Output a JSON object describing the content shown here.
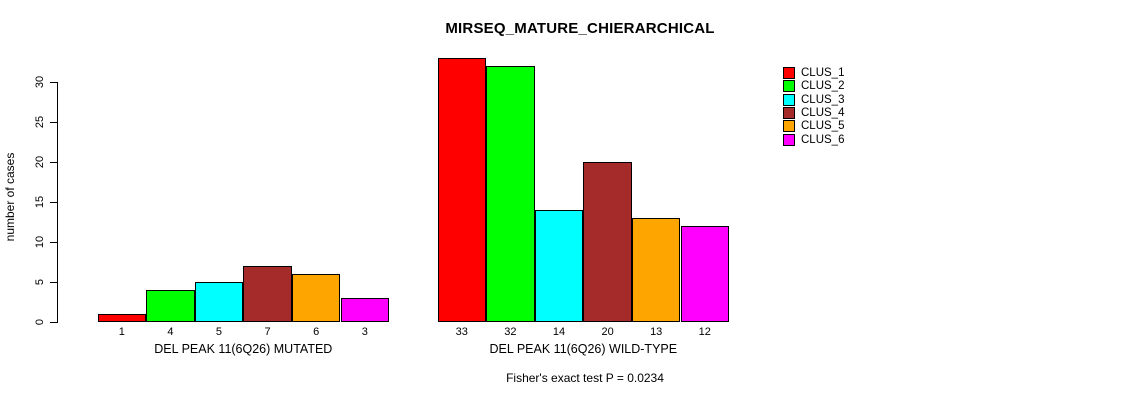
{
  "title": "MIRSEQ_MATURE_CHIERARCHICAL",
  "chart_data": {
    "type": "bar",
    "title": "MIRSEQ_MATURE_CHIERARCHICAL",
    "ylabel": "number of cases",
    "xlabel": "",
    "ylim": [
      0,
      33
    ],
    "yticks": [
      0,
      5,
      10,
      15,
      20,
      25,
      30
    ],
    "grid": false,
    "legend_position": "right-outside",
    "legend": [
      {
        "label": "CLUS_1",
        "color": "#FF0000"
      },
      {
        "label": "CLUS_2",
        "color": "#00FF00"
      },
      {
        "label": "CLUS_3",
        "color": "#00FFFF"
      },
      {
        "label": "CLUS_4",
        "color": "#A52A2A"
      },
      {
        "label": "CLUS_5",
        "color": "#FFA500"
      },
      {
        "label": "CLUS_6",
        "color": "#FF00FF"
      }
    ],
    "groups": [
      {
        "label": "DEL PEAK 11(6Q26) MUTATED",
        "values": [
          1,
          4,
          5,
          7,
          6,
          3
        ]
      },
      {
        "label": "DEL PEAK 11(6Q26) WILD-TYPE",
        "values": [
          33,
          32,
          14,
          20,
          13,
          12
        ]
      }
    ],
    "bar_value_labels_shown": true,
    "annotation": "Fisher's exact test P = 0.0234"
  }
}
